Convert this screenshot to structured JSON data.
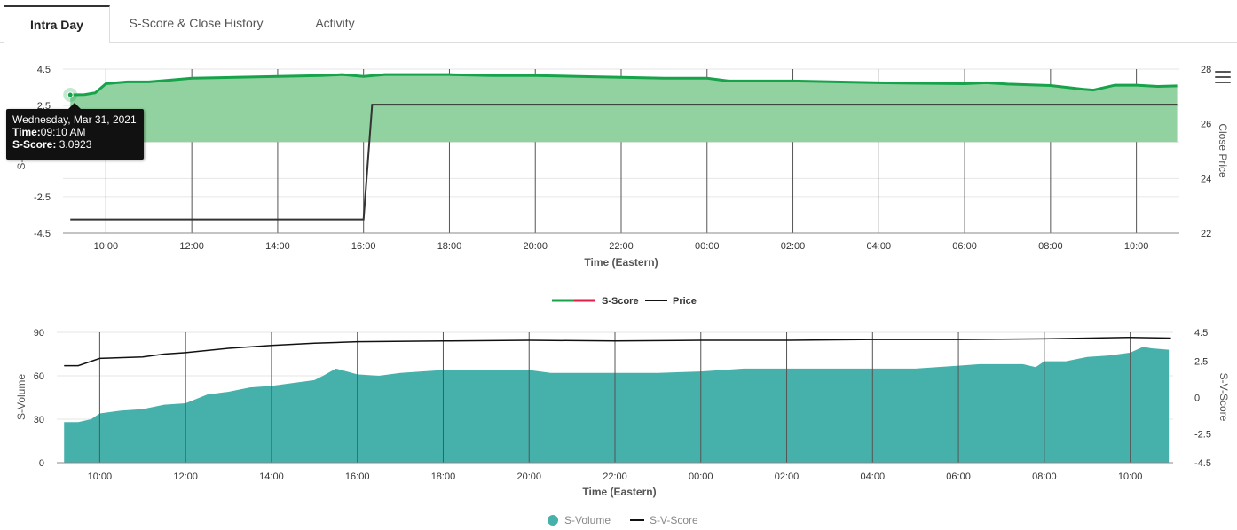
{
  "tabs": [
    {
      "label": "Intra Day",
      "active": true
    },
    {
      "label": "S-Score & Close History",
      "active": false
    },
    {
      "label": "Activity",
      "active": false
    }
  ],
  "colors": {
    "sscore_line": "#16a34a",
    "sscore_fill": "#92d2a0",
    "sscore_negative": "#e11d48",
    "price_line": "#333333",
    "svolume_fill": "#46b0ab",
    "svscore_line": "#111111"
  },
  "menu_icon": "hamburger-icon",
  "tooltip": {
    "date": "Wednesday, Mar 31, 2021",
    "time_label": "Time:",
    "time_value": "09:10 AM",
    "score_label": "S-Score:",
    "score_value": "3.0923"
  },
  "chart_data": [
    {
      "type": "line",
      "xlabel": "Time (Eastern)",
      "ylabel": "S-Score",
      "ylabel_right": "Close Price",
      "x_ticks": [
        "10:00",
        "12:00",
        "14:00",
        "16:00",
        "18:00",
        "20:00",
        "22:00",
        "00:00",
        "02:00",
        "04:00",
        "06:00",
        "08:00",
        "10:00"
      ],
      "y_ticks_left": [
        "4.5",
        "2.5",
        "",
        "-2.5",
        "-4.5"
      ],
      "y_ticks_right": [
        "28",
        "26",
        "24",
        "22"
      ],
      "ylim": [
        -4.5,
        4.5
      ],
      "ylim_right": [
        22,
        28
      ],
      "grid": true,
      "legend_position": "bottom-center",
      "series": [
        {
          "name": "S-Score",
          "x": [
            9.17,
            9.5,
            9.75,
            10.0,
            10.5,
            11.0,
            11.5,
            12.0,
            13.0,
            14.0,
            15.0,
            15.5,
            16.0,
            16.5,
            17.0,
            18.0,
            19.0,
            20.0,
            21.0,
            22.0,
            23.0,
            24.0,
            24.5,
            25.0,
            26.0,
            27.0,
            28.0,
            29.0,
            30.0,
            30.5,
            31.0,
            32.0,
            32.75,
            33.0,
            33.5,
            34.0,
            34.5,
            34.95
          ],
          "values": [
            3.09,
            3.1,
            3.2,
            3.7,
            3.8,
            3.8,
            3.9,
            4.0,
            4.05,
            4.1,
            4.15,
            4.2,
            4.1,
            4.2,
            4.2,
            4.2,
            4.15,
            4.15,
            4.1,
            4.05,
            4.0,
            4.0,
            3.85,
            3.85,
            3.85,
            3.8,
            3.75,
            3.72,
            3.7,
            3.75,
            3.68,
            3.6,
            3.4,
            3.35,
            3.62,
            3.62,
            3.55,
            3.58
          ]
        },
        {
          "name": "Price",
          "axis": "right",
          "x": [
            9.17,
            16.0,
            16.2,
            34.95
          ],
          "values": [
            22.5,
            22.5,
            26.7,
            26.7
          ]
        }
      ]
    },
    {
      "type": "area",
      "xlabel": "Time (Eastern)",
      "ylabel": "S-Volume",
      "ylabel_right": "S-V-Score",
      "x_ticks": [
        "10:00",
        "12:00",
        "14:00",
        "16:00",
        "18:00",
        "20:00",
        "22:00",
        "00:00",
        "02:00",
        "04:00",
        "06:00",
        "08:00",
        "10:00"
      ],
      "y_ticks_left": [
        "90",
        "60",
        "30",
        "0"
      ],
      "y_ticks_right": [
        "4.5",
        "2.5",
        "0",
        "-2.5",
        "-4.5"
      ],
      "ylim": [
        0,
        90
      ],
      "ylim_right": [
        -4.5,
        4.5
      ],
      "grid": true,
      "legend_position": "bottom-center",
      "series": [
        {
          "name": "S-Volume",
          "x": [
            9.17,
            9.5,
            9.8,
            10.0,
            10.5,
            11.0,
            11.5,
            12.0,
            12.5,
            13.0,
            13.5,
            14.0,
            14.5,
            15.0,
            15.2,
            15.5,
            16.0,
            16.5,
            17.0,
            17.5,
            18.0,
            19.0,
            20.0,
            20.5,
            21.0,
            21.5,
            22.0,
            23.0,
            24.0,
            24.5,
            25.0,
            26.0,
            27.0,
            28.0,
            29.0,
            29.5,
            30.0,
            30.5,
            31.0,
            31.5,
            31.8,
            32.0,
            32.5,
            33.0,
            33.5,
            34.0,
            34.3,
            34.5,
            34.9
          ],
          "values": [
            28,
            28,
            30,
            34,
            36,
            37,
            40,
            41,
            47,
            49,
            52,
            53,
            55,
            57,
            60,
            65,
            61,
            60,
            62,
            63,
            64,
            64,
            64,
            62,
            62,
            62,
            62,
            62,
            63,
            64,
            65,
            65,
            65,
            65,
            65,
            66,
            67,
            68,
            68,
            68,
            66,
            70,
            70,
            73,
            74,
            76,
            80,
            79,
            78
          ]
        },
        {
          "name": "S-V-Score",
          "axis": "right",
          "x": [
            9.17,
            9.5,
            10.0,
            11.0,
            11.5,
            12.0,
            13.0,
            14.0,
            15.0,
            16.0,
            18.0,
            20.0,
            22.0,
            24.0,
            26.0,
            28.0,
            30.0,
            32.0,
            34.0,
            34.95
          ],
          "values": [
            2.2,
            2.2,
            2.7,
            2.8,
            3.0,
            3.1,
            3.4,
            3.6,
            3.75,
            3.85,
            3.9,
            3.95,
            3.9,
            3.95,
            3.95,
            4.0,
            4.0,
            4.05,
            4.15,
            4.1
          ]
        }
      ]
    }
  ]
}
